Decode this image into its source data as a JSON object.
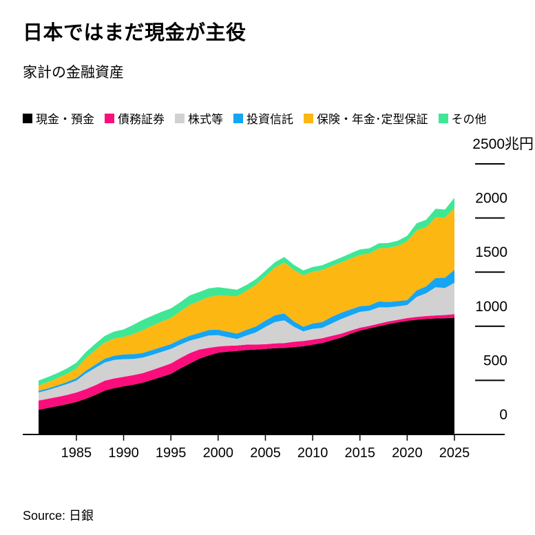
{
  "header": {
    "title": "日本ではまだ現金が主役",
    "subtitle": "家計の金融資産"
  },
  "source": {
    "label": "Source: 日銀"
  },
  "chart_data": {
    "type": "area",
    "stacked": true,
    "title": "日本ではまだ現金が主役",
    "subtitle": "家計の金融資産",
    "unit": "兆円",
    "x_start": 1981,
    "x_end": 2025,
    "x_ticks": [
      1985,
      1990,
      1995,
      2000,
      2005,
      2010,
      2015,
      2020,
      2025
    ],
    "ylim": [
      0,
      2500
    ],
    "y_ticks": [
      {
        "value": 2500,
        "label": "2500兆円"
      },
      {
        "value": 2000,
        "label": "2000"
      },
      {
        "value": 1500,
        "label": "1500"
      },
      {
        "value": 1000,
        "label": "1000"
      },
      {
        "value": 500,
        "label": "500"
      },
      {
        "value": 0,
        "label": "0"
      }
    ],
    "legend_position": "top",
    "grid": false,
    "series": [
      {
        "name": "現金・預金",
        "color": "#000000",
        "values": [
          228,
          245,
          262,
          280,
          300,
          330,
          365,
          405,
          428,
          445,
          460,
          478,
          505,
          532,
          560,
          610,
          655,
          700,
          730,
          755,
          765,
          772,
          780,
          785,
          790,
          797,
          800,
          808,
          815,
          830,
          845,
          870,
          895,
          930,
          960,
          980,
          1000,
          1020,
          1035,
          1050,
          1060,
          1068,
          1072,
          1074,
          1078
        ]
      },
      {
        "name": "債務証券",
        "color": "#fb0d7c",
        "values": [
          85,
          85,
          85,
          85,
          88,
          88,
          90,
          92,
          90,
          88,
          88,
          88,
          90,
          93,
          96,
          96,
          96,
          85,
          70,
          58,
          54,
          50,
          50,
          46,
          44,
          44,
          44,
          48,
          48,
          46,
          44,
          40,
          36,
          30,
          26,
          24,
          24,
          24,
          24,
          26,
          26,
          26,
          28,
          30,
          34
        ]
      },
      {
        "name": "株式等",
        "color": "#d1d1d1",
        "values": [
          75,
          80,
          90,
          100,
          110,
          145,
          160,
          168,
          170,
          163,
          150,
          143,
          140,
          138,
          135,
          125,
          116,
          105,
          115,
          105,
          80,
          60,
          85,
          112,
          160,
          197,
          210,
          140,
          90,
          100,
          95,
          115,
          135,
          140,
          147,
          140,
          150,
          130,
          125,
          120,
          185,
          210,
          260,
          250,
          290
        ]
      },
      {
        "name": "投資信託",
        "color": "#15a5f4",
        "values": [
          15,
          16,
          17,
          19,
          22,
          25,
          30,
          35,
          40,
          44,
          44,
          44,
          44,
          44,
          44,
          46,
          46,
          48,
          50,
          51,
          50,
          50,
          52,
          55,
          58,
          63,
          65,
          50,
          42,
          50,
          55,
          60,
          58,
          55,
          52,
          48,
          55,
          50,
          48,
          45,
          60,
          64,
          85,
          95,
          120
        ]
      },
      {
        "name": "保険・年金･定型保証",
        "color": "#fdb713",
        "values": [
          50,
          58,
          66,
          76,
          88,
          115,
          135,
          150,
          158,
          160,
          185,
          209,
          225,
          235,
          241,
          260,
          285,
          295,
          305,
          316,
          330,
          345,
          360,
          385,
          410,
          440,
          470,
          475,
          475,
          478,
          480,
          470,
          465,
          470,
          473,
          480,
          490,
          500,
          510,
          544,
          555,
          545,
          560,
          555,
          570
        ]
      },
      {
        "name": "その他",
        "color": "#3fe795",
        "values": [
          45,
          47,
          48,
          50,
          55,
          57,
          58,
          60,
          65,
          70,
          85,
          95,
          92,
          90,
          89,
          85,
          87,
          83,
          80,
          76,
          70,
          60,
          55,
          52,
          50,
          50,
          50,
          47,
          45,
          44,
          44,
          44,
          46,
          48,
          51,
          48,
          47,
          45,
          48,
          50,
          65,
          70,
          80,
          75,
          95
        ]
      }
    ]
  }
}
